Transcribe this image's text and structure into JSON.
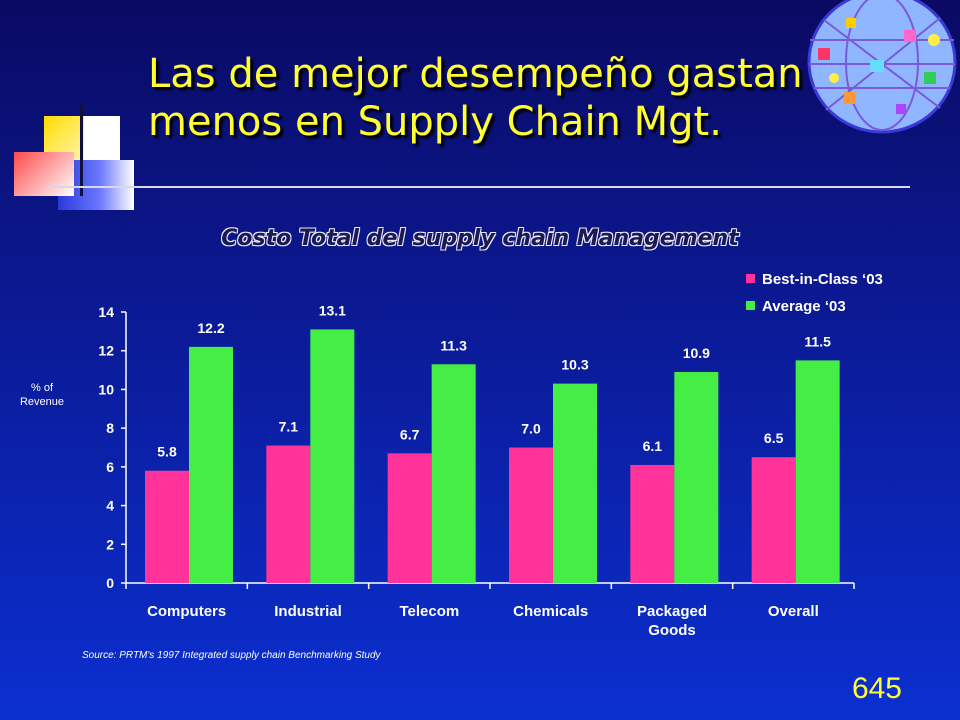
{
  "slide": {
    "title_line1": "Las de mejor desempeño gastan",
    "title_line2": "menos en Supply Chain Mgt.",
    "source": "Source:  PRTM's 1997 Integrated supply chain Benchmarking Study",
    "page_number": "645",
    "colors": {
      "background": "#0b1a96",
      "title": "#ffff33"
    }
  },
  "chart_data": {
    "type": "bar",
    "title": "Costo Total del supply chain Management",
    "ylabel": "% of Revenue",
    "categories": [
      "Computers",
      "Industrial",
      "Telecom",
      "Chemicals",
      "Packaged Goods",
      "Overall"
    ],
    "series": [
      {
        "name": "Best-in-Class ‘03",
        "color": "#ff3399",
        "values": [
          5.8,
          7.1,
          6.7,
          7.0,
          6.1,
          6.5
        ]
      },
      {
        "name": "Average ‘03",
        "color": "#44ee44",
        "values": [
          12.2,
          13.1,
          11.3,
          10.3,
          10.9,
          11.5
        ]
      }
    ],
    "yticks": [
      "0",
      "2",
      "4",
      "6",
      "8",
      "10",
      "12",
      "14"
    ],
    "ylim": [
      0,
      14
    ],
    "legend_position": "top-right",
    "grid": false
  }
}
